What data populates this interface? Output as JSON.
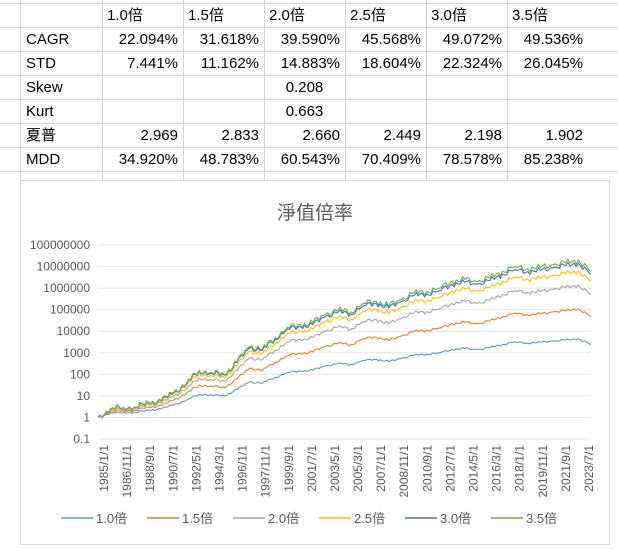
{
  "table": {
    "headers": [
      "1.0倍",
      "1.5倍",
      "2.0倍",
      "2.5倍",
      "3.0倍",
      "3.5倍"
    ],
    "rows": [
      {
        "label": "CAGR",
        "values": [
          "22.094%",
          "31.618%",
          "39.590%",
          "45.568%",
          "49.072%",
          "49.536%"
        ]
      },
      {
        "label": "STD",
        "values": [
          "7.441%",
          "11.162%",
          "14.883%",
          "18.604%",
          "22.324%",
          "26.045%"
        ]
      },
      {
        "label": "Skew",
        "merged": "0.208"
      },
      {
        "label": "Kurt",
        "merged": "0.663"
      },
      {
        "label": "夏普",
        "values": [
          "2.969",
          "2.833",
          "2.660",
          "2.449",
          "2.198",
          "1.902"
        ]
      },
      {
        "label": "MDD",
        "values": [
          "34.920%",
          "48.783%",
          "60.543%",
          "70.409%",
          "78.578%",
          "85.238%"
        ]
      }
    ]
  },
  "chart_data": {
    "type": "line",
    "title": "淨值倍率",
    "yscale": "log",
    "ylim": [
      0.1,
      100000000
    ],
    "yticks": [
      "100000000",
      "10000000",
      "1000000",
      "100000",
      "10000",
      "1000",
      "100",
      "10",
      "1",
      "0.1"
    ],
    "xlim": [
      1985,
      2024
    ],
    "xticks": [
      "1985/1/1",
      "1986/11/1",
      "1988/9/1",
      "1990/7/1",
      "1992/5/1",
      "1994/3/1",
      "1996/1/1",
      "1997/11/1",
      "1999/9/1",
      "2001/7/1",
      "2003/5/1",
      "2005/3/1",
      "2007/1/1",
      "2008/11/1",
      "2010/9/1",
      "2012/7/1",
      "2014/5/1",
      "2016/3/1",
      "2018/1/1",
      "2019/11/1",
      "2021/9/1",
      "2023/7/1"
    ],
    "x": [
      1985,
      1986,
      1987,
      1988,
      1989,
      1990,
      1991,
      1992,
      1993,
      1994,
      1995,
      1996,
      1997,
      1998,
      1999,
      2000,
      2001,
      2002,
      2003,
      2004,
      2005,
      2006,
      2007,
      2008,
      2009,
      2010,
      2011,
      2012,
      2013,
      2014,
      2015,
      2016,
      2017,
      2018,
      2019,
      2020,
      2021,
      2022,
      2023,
      2024
    ],
    "legend_position": "bottom",
    "series": [
      {
        "name": "1.0倍",
        "color": "#5B9BD5",
        "values": [
          1,
          1.6,
          1.7,
          1.7,
          2.2,
          2.5,
          3.9,
          6.3,
          12,
          11,
          10,
          20,
          45,
          39,
          71,
          123,
          141,
          158,
          245,
          316,
          282,
          447,
          501,
          389,
          550,
          776,
          851,
          1000,
          1413,
          1585,
          1413,
          1738,
          2455,
          3162,
          2818,
          3020,
          3467,
          3890,
          4467,
          2455
        ]
      },
      {
        "name": "1.5倍",
        "color": "#ED7D31",
        "values": [
          1,
          1.9,
          2.1,
          2.1,
          3,
          3.5,
          6.5,
          13,
          32,
          28,
          24,
          62,
          190,
          155,
          355,
          760,
          930,
          1100,
          2000,
          2800,
          2400,
          4600,
          5400,
          3700,
          6000,
          9800,
          11000,
          14000,
          22000,
          26000,
          22000,
          30000,
          48000,
          68000,
          58000,
          63000,
          78000,
          89000,
          110000,
          48000
        ]
      },
      {
        "name": "2.0倍",
        "color": "#A5A5A5",
        "values": [
          1,
          2.2,
          2.5,
          2.5,
          3.9,
          4.6,
          9.8,
          22,
          68,
          56,
          48,
          150,
          590,
          470,
          1300,
          3200,
          4100,
          5000,
          10000,
          16000,
          13000,
          28000,
          35000,
          22000,
          40000,
          72000,
          81000,
          110000,
          195000,
          240000,
          195000,
          275000,
          500000,
          760000,
          630000,
          690000,
          890000,
          1070000,
          1350000,
          500000
        ]
      },
      {
        "name": "2.5倍",
        "color": "#FFC000",
        "values": [
          1,
          2.3,
          2.8,
          2.8,
          4.5,
          5.4,
          13,
          31,
          107,
          85,
          72,
          263,
          1200,
          910,
          2750,
          7800,
          10000,
          12300,
          28000,
          45000,
          36000,
          85000,
          105000,
          66000,
          126000,
          240000,
          275000,
          380000,
          720000,
          890000,
          720000,
          1070000,
          2040000,
          3240000,
          2630000,
          2880000,
          3800000,
          4700000,
          6200000,
          2040000
        ]
      },
      {
        "name": "3.0倍",
        "color": "#4472C4",
        "values": [
          1,
          2.5,
          3,
          3,
          4.9,
          5.8,
          14,
          37,
          138,
          110,
          91,
          355,
          1700,
          1300,
          4300,
          12600,
          16000,
          20000,
          48000,
          79000,
          63000,
          155000,
          195000,
          120000,
          234000,
          457000,
          537000,
          760000,
          1480000,
          1860000,
          1480000,
          2240000,
          4370000,
          7240000,
          5750000,
          6460000,
          8700000,
          11000000,
          14100000,
          4370000
        ]
      },
      {
        "name": "3.5倍",
        "color": "#70AD47",
        "values": [
          1,
          2.5,
          3,
          3,
          5,
          6,
          15,
          40,
          150,
          120,
          100,
          400,
          2000,
          1500,
          5000,
          15000,
          20000,
          25000,
          60000,
          100000,
          80000,
          200000,
          250000,
          150000,
          300000,
          600000,
          700000,
          1000000,
          2000000,
          2500000,
          2000000,
          3000000,
          6000000,
          10000000,
          8000000,
          9000000,
          12000000,
          15000000,
          20000000,
          6000000
        ]
      }
    ]
  }
}
